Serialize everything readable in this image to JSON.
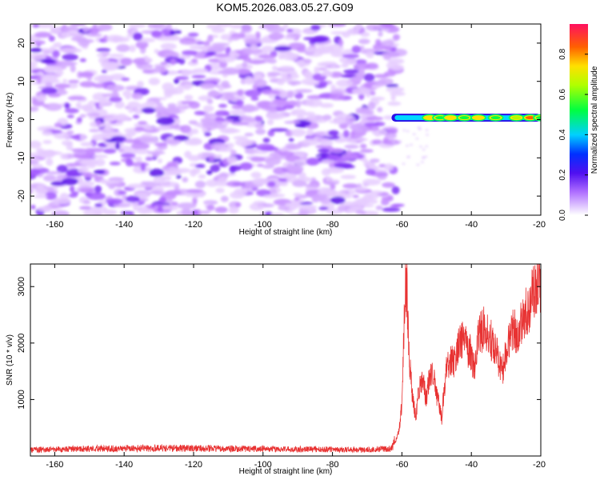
{
  "title": "KOM5.2026.083.05.27.G09",
  "chart_data": [
    {
      "type": "heatmap",
      "title": "KOM5.2026.083.05.27.G09",
      "xlabel": "Height of straight line (km)",
      "ylabel": "Frequency (Hz)",
      "xlim": [
        -167,
        -20
      ],
      "ylim": [
        -25,
        25
      ],
      "xticks": [
        -160,
        -140,
        -120,
        -100,
        -80,
        -60,
        -40,
        -20
      ],
      "yticks": [
        -20,
        -10,
        0,
        10,
        20
      ],
      "noise_region_x": [
        -167,
        -63
      ],
      "signal_band": {
        "x_range": [
          -63,
          -20
        ],
        "freq_center": 0.5,
        "intensity_profile": [
          {
            "x": -63,
            "amp": 0.1
          },
          {
            "x": -58,
            "amp": 0.25
          },
          {
            "x": -52,
            "amp": 0.85
          },
          {
            "x": -49,
            "amp": 0.55
          },
          {
            "x": -46,
            "amp": 0.8
          },
          {
            "x": -42,
            "amp": 0.6
          },
          {
            "x": -38,
            "amp": 0.82
          },
          {
            "x": -33,
            "amp": 0.6
          },
          {
            "x": -27,
            "amp": 0.75
          },
          {
            "x": -23,
            "amp": 0.92
          },
          {
            "x": -20,
            "amp": 0.6
          }
        ]
      },
      "colorbar": {
        "label": "Normalized spectral amplitude",
        "range": [
          0,
          0.95
        ],
        "ticks": [
          "0.0",
          "0.2",
          "0.4",
          "0.6",
          "0.8"
        ]
      }
    },
    {
      "type": "line",
      "xlabel": "Height of straight line (km)",
      "ylabel": "SNR (10 * v/v)",
      "xlim": [
        -167,
        -20
      ],
      "ylim": [
        0,
        3400
      ],
      "xticks": [
        -160,
        -140,
        -120,
        -100,
        -80,
        -60,
        -40,
        -20
      ],
      "yticks": [
        1000,
        2000,
        3000
      ],
      "series": [
        {
          "name": "SNR",
          "color": "#e83232",
          "noise_floor": 100,
          "envelope": [
            [
              -167,
              110
            ],
            [
              -150,
              130
            ],
            [
              -130,
              140
            ],
            [
              -110,
              130
            ],
            [
              -90,
              120
            ],
            [
              -70,
              110
            ],
            [
              -63,
              130
            ],
            [
              -61,
              400
            ],
            [
              -60,
              900
            ],
            [
              -59.5,
              2000
            ],
            [
              -59,
              3000
            ],
            [
              -58.5,
              2900
            ],
            [
              -58,
              1800
            ],
            [
              -57,
              1050
            ],
            [
              -56,
              700
            ],
            [
              -55,
              1200
            ],
            [
              -54,
              1350
            ],
            [
              -53,
              1000
            ],
            [
              -52,
              1400
            ],
            [
              -51,
              1500
            ],
            [
              -50,
              1100
            ],
            [
              -49,
              800
            ],
            [
              -48.5,
              650
            ],
            [
              -48,
              1100
            ],
            [
              -47,
              1600
            ],
            [
              -45,
              1700
            ],
            [
              -44,
              1900
            ],
            [
              -43,
              2000
            ],
            [
              -42,
              2100
            ],
            [
              -41,
              1900
            ],
            [
              -40,
              1800
            ],
            [
              -39,
              1500
            ],
            [
              -38,
              2100
            ],
            [
              -36,
              2300
            ],
            [
              -34,
              2000
            ],
            [
              -33,
              1900
            ],
            [
              -32,
              1600
            ],
            [
              -31,
              1500
            ],
            [
              -30,
              1800
            ],
            [
              -29,
              2100
            ],
            [
              -28,
              2300
            ],
            [
              -27,
              2200
            ],
            [
              -26,
              2300
            ],
            [
              -25,
              2500
            ],
            [
              -24,
              2600
            ],
            [
              -23,
              2700
            ],
            [
              -22,
              2900
            ],
            [
              -21,
              3100
            ],
            [
              -20,
              3000
            ]
          ]
        }
      ]
    }
  ]
}
